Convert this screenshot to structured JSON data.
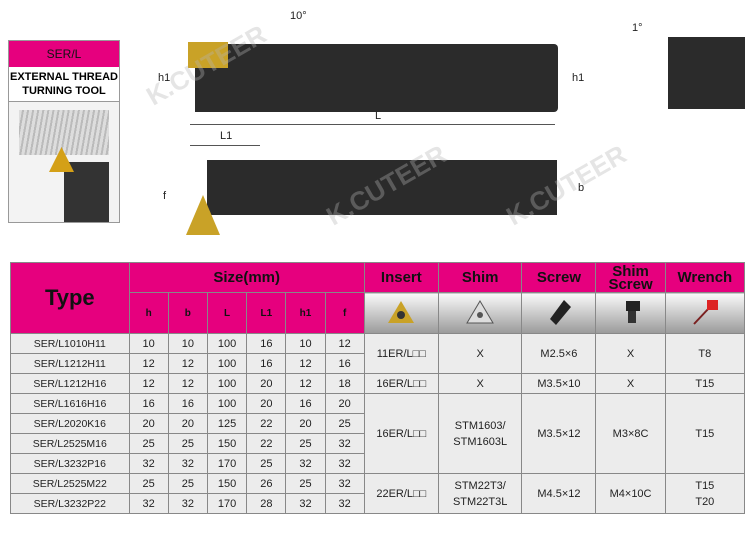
{
  "label": {
    "code": "SER/L",
    "title": "EXTERNAL THREAD TURNING TOOL"
  },
  "drawing": {
    "angle1": "10°",
    "angle2": "1°",
    "h1": "h1",
    "L": "L",
    "L1": "L1",
    "f": "f",
    "b": "b"
  },
  "watermark": "K.CUTEER",
  "table": {
    "type_header": "Type",
    "size_header": "Size(mm)",
    "size_cols": [
      "h",
      "b",
      "L",
      "L1",
      "h1",
      "f"
    ],
    "part_headers": [
      "Insert",
      "Shim",
      "Screw",
      "Shim Screw",
      "Wrench"
    ],
    "part_icons": [
      "insert-icon",
      "shim-icon",
      "screw-icon",
      "shim-screw-icon",
      "wrench-icon"
    ],
    "rows": [
      [
        "SER/L1010H11",
        "10",
        "10",
        "100",
        "16",
        "10",
        "12"
      ],
      [
        "SER/L1212H11",
        "12",
        "12",
        "100",
        "16",
        "12",
        "16"
      ],
      [
        "SER/L1212H16",
        "12",
        "12",
        "100",
        "20",
        "12",
        "18"
      ],
      [
        "SER/L1616H16",
        "16",
        "16",
        "100",
        "20",
        "16",
        "20"
      ],
      [
        "SER/L2020K16",
        "20",
        "20",
        "125",
        "22",
        "20",
        "25"
      ],
      [
        "SER/L2525M16",
        "25",
        "25",
        "150",
        "22",
        "25",
        "32"
      ],
      [
        "SER/L3232P16",
        "32",
        "32",
        "170",
        "25",
        "32",
        "32"
      ],
      [
        "SER/L2525M22",
        "25",
        "25",
        "150",
        "26",
        "25",
        "32"
      ],
      [
        "SER/L3232P22",
        "32",
        "32",
        "170",
        "28",
        "32",
        "32"
      ]
    ],
    "groups": [
      [
        "11ER/L□□",
        "X",
        "M2.5×6",
        "X",
        "T8"
      ],
      [
        "16ER/L□□",
        "X",
        "M3.5×10",
        "X",
        "T15"
      ],
      [
        "16ER/L□□",
        "STM1603/ STM1603L",
        "M3.5×12",
        "M3×8C",
        "T15"
      ],
      [
        "22ER/L□□",
        "STM22T3/ STM22T3L",
        "M4.5×12",
        "M4×10C",
        "T15 T20"
      ]
    ]
  },
  "colors": {
    "accent": "#e6007e",
    "body": "#2b2b2b"
  }
}
